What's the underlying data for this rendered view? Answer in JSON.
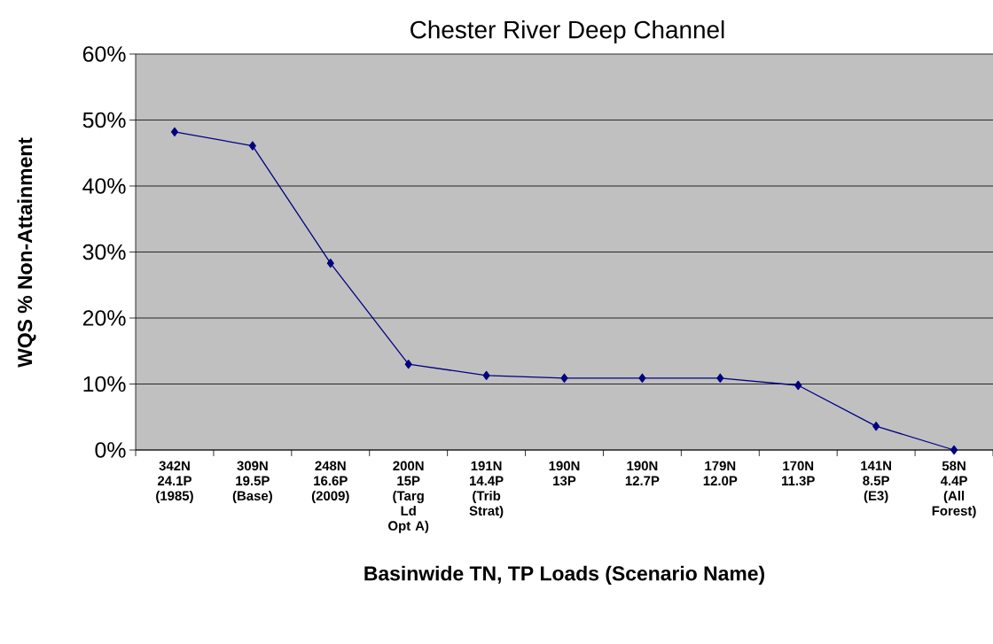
{
  "chart_data": {
    "type": "line",
    "title": "Chester River Deep Channel",
    "xlabel": "Basinwide TN, TP Loads (Scenario Name)",
    "ylabel": "WQS % Non-Attainment",
    "categories": [
      "342N 24.1P (1985)",
      "309N 19.5P (Base)",
      "248N 16.6P (2009)",
      "200N 15P (Targ Ld Opt A)",
      "191N 14.4P (Trib Strat)",
      "190N 13P",
      "190N 12.7P",
      "179N 12.0P",
      "170N 11.3P",
      "141N 8.5P (E3)",
      "58N 4.4P (All Forest)"
    ],
    "series": [
      {
        "color": "#000080",
        "values": [
          48.2,
          46.1,
          28.3,
          13.0,
          11.3,
          10.9,
          10.9,
          10.9,
          9.8,
          3.6,
          0
        ]
      }
    ],
    "ylim": [
      0,
      60
    ],
    "yticks": [
      {
        "value": 0,
        "label": "0%"
      },
      {
        "value": 10,
        "label": "10%"
      },
      {
        "value": 20,
        "label": "20%"
      },
      {
        "value": 30,
        "label": "30%"
      },
      {
        "value": 40,
        "label": "40%"
      },
      {
        "value": 50,
        "label": "50%"
      },
      {
        "value": 60,
        "label": "60%"
      }
    ],
    "grid": "y",
    "marker": "diamond",
    "line_style": "solid"
  }
}
